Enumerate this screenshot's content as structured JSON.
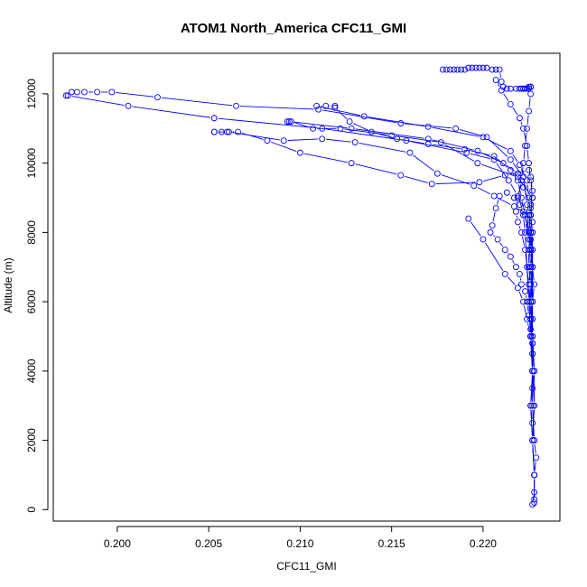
{
  "chart_data": {
    "type": "scatter",
    "title": "ATOM1 North_America CFC11_GMI",
    "xlabel": "CFC11_GMI",
    "ylabel": "Altitude (m)",
    "xlim": [
      0.1965,
      0.2242
    ],
    "ylim": [
      -330,
      13170
    ],
    "x_ticks": [
      "0.200",
      "0.205",
      "0.210",
      "0.215",
      "0.220"
    ],
    "y_ticks": [
      "0",
      "2000",
      "4000",
      "6000",
      "8000",
      "10000",
      "12000"
    ],
    "x_tick_values": [
      0.2,
      0.205,
      0.21,
      0.215,
      0.22
    ],
    "y_tick_values": [
      0,
      2000,
      4000,
      6000,
      8000,
      10000,
      12000
    ],
    "grid": false,
    "marker": "open-circle",
    "color": "#0000ff",
    "series": [
      {
        "x": [
          0.2227,
          0.2228,
          0.2228,
          0.2229,
          0.2228,
          0.2227,
          0.2226,
          0.2227,
          0.2228,
          0.2227,
          0.2226,
          0.2226,
          0.2227,
          0.2226,
          0.2225,
          0.2225,
          0.2226,
          0.2225,
          0.2226,
          0.2227,
          0.2226,
          0.2225,
          0.2212,
          0.2198,
          0.2172,
          0.2155,
          0.2128,
          0.21,
          0.2082,
          0.2066,
          0.206,
          0.2057,
          0.2053
        ],
        "y": [
          150,
          500,
          1000,
          1500,
          2000,
          2500,
          3000,
          3500,
          4000,
          4500,
          5000,
          5500,
          6000,
          6500,
          7000,
          7500,
          8000,
          8200,
          8700,
          9200,
          9600,
          9800,
          9650,
          9450,
          9400,
          9650,
          10000,
          10300,
          10650,
          10900,
          10900,
          10900,
          10900
        ]
      },
      {
        "x": [
          0.2053,
          0.2061,
          0.2091,
          0.2112,
          0.213,
          0.216,
          0.2175,
          0.2195,
          0.2206,
          0.2217,
          0.2225,
          0.2226,
          0.2227,
          0.2226,
          0.2225,
          0.2226,
          0.2227,
          0.2226
        ],
        "y": [
          10900,
          10900,
          10650,
          10700,
          10600,
          10300,
          9700,
          9350,
          9050,
          8750,
          8500,
          8000,
          7500,
          7000,
          6500,
          6000,
          5500,
          5000
        ]
      },
      {
        "x": [
          0.2226,
          0.2227,
          0.2227,
          0.2228,
          0.2227,
          0.2226,
          0.2227,
          0.2226,
          0.2227,
          0.2219,
          0.2197,
          0.2177,
          0.215,
          0.2122,
          0.2107,
          0.2095,
          0.2093
        ],
        "y": [
          5000,
          5500,
          6000,
          6500,
          7000,
          7500,
          8000,
          8500,
          9000,
          9600,
          10000,
          10600,
          10800,
          11000,
          11000,
          11200,
          11200
        ]
      },
      {
        "x": [
          0.2094,
          0.2128,
          0.217,
          0.2197,
          0.2211,
          0.2219,
          0.2222,
          0.2226,
          0.2227,
          0.2226,
          0.2227,
          0.2226,
          0.2227,
          0.2227,
          0.2228,
          0.2228,
          0.2227,
          0.2228,
          0.2228
        ],
        "y": [
          11200,
          11000,
          10700,
          10350,
          10000,
          9700,
          9300,
          8800,
          8300,
          7800,
          7000,
          6500,
          6000,
          5000,
          4000,
          3000,
          2000,
          1000,
          300
        ]
      },
      {
        "x": [
          0.2228,
          0.2228,
          0.2227,
          0.2228,
          0.2227,
          0.2226,
          0.2227,
          0.2226,
          0.2225,
          0.2224,
          0.2222,
          0.2215,
          0.2202,
          0.2185,
          0.2155,
          0.211,
          0.2065,
          0.2022,
          0.1997,
          0.1989,
          0.1982,
          0.1978,
          0.1975,
          0.1972
        ],
        "y": [
          200,
          1000,
          2000,
          3000,
          4000,
          5000,
          6000,
          7000,
          7800,
          8800,
          9600,
          10100,
          10750,
          11000,
          11150,
          11550,
          11650,
          11900,
          12050,
          12050,
          12050,
          12050,
          12050,
          11950
        ]
      },
      {
        "x": [
          0.1973,
          0.2006,
          0.2053,
          0.2112,
          0.2158,
          0.2191,
          0.2206,
          0.2214,
          0.2219,
          0.2222,
          0.2225,
          0.2227,
          0.2227,
          0.2226,
          0.2227,
          0.2227,
          0.2228
        ],
        "y": [
          11950,
          11650,
          11300,
          11000,
          10650,
          10300,
          10100,
          9500,
          9050,
          8600,
          8050,
          7500,
          6000,
          5000,
          4000,
          3000,
          2000
        ]
      },
      {
        "x": [
          0.2228,
          0.2227,
          0.2226,
          0.2227,
          0.2227,
          0.2226,
          0.2226,
          0.2227,
          0.2226,
          0.2225,
          0.2223,
          0.2221,
          0.2219,
          0.2215,
          0.2206,
          0.219,
          0.217,
          0.2153,
          0.2139,
          0.2127,
          0.2119
        ],
        "y": [
          1000,
          2000,
          3000,
          4000,
          5000,
          6000,
          6500,
          7000,
          7500,
          8000,
          8500,
          9000,
          9500,
          9800,
          10200,
          10400,
          10550,
          10700,
          10900,
          11200,
          11600
        ]
      },
      {
        "x": [
          0.2119,
          0.2114,
          0.2109,
          0.2135,
          0.217,
          0.22,
          0.2215,
          0.222,
          0.2224,
          0.2225,
          0.2226,
          0.2227,
          0.2227,
          0.2226,
          0.2227,
          0.2228
        ],
        "y": [
          11650,
          11650,
          11650,
          11350,
          11050,
          10750,
          10350,
          9950,
          9500,
          9000,
          8500,
          8000,
          7000,
          6000,
          5000,
          4000
        ]
      },
      {
        "x": [
          0.2227,
          0.2226,
          0.2225,
          0.2224,
          0.2223,
          0.2222,
          0.222,
          0.2217,
          0.2213,
          0.2209,
          0.2207,
          0.2205,
          0.2204,
          0.2208,
          0.2212,
          0.2215,
          0.2218,
          0.222,
          0.2221,
          0.2223,
          0.2224,
          0.2225,
          0.2226,
          0.2227
        ],
        "y": [
          4000,
          5000,
          6000,
          7000,
          8000,
          8500,
          8800,
          9000,
          9150,
          9050,
          8700,
          8200,
          8000,
          7800,
          7500,
          7300,
          7000,
          6800,
          6500,
          6300,
          6000,
          5600,
          5200,
          4800
        ]
      },
      {
        "x": [
          0.2227,
          0.2226,
          0.2225,
          0.2223,
          0.2221,
          0.2219,
          0.2218,
          0.2219,
          0.2221,
          0.2222,
          0.2223,
          0.2224,
          0.2225,
          0.2226,
          0.2225,
          0.2226,
          0.2226,
          0.2226,
          0.2226,
          0.2225,
          0.2224,
          0.2223,
          0.2222,
          0.2221,
          0.222,
          0.2218,
          0.2215,
          0.2213,
          0.2211,
          0.221,
          0.2209,
          0.2207,
          0.2205,
          0.2202,
          0.22,
          0.2198,
          0.2196,
          0.2194,
          0.2192,
          0.219,
          0.2188,
          0.2186,
          0.2184,
          0.2182,
          0.218,
          0.2178
        ],
        "y": [
          4800,
          5500,
          6500,
          7500,
          8000,
          8300,
          8600,
          9000,
          9500,
          10000,
          10500,
          11000,
          11500,
          12000,
          12200,
          12200,
          12200,
          12200,
          12200,
          12150,
          12150,
          12150,
          12150,
          12150,
          12150,
          12150,
          12150,
          12150,
          12200,
          12350,
          12700,
          12700,
          12700,
          12750,
          12750,
          12750,
          12750,
          12750,
          12750,
          12700,
          12700,
          12700,
          12700,
          12700,
          12700,
          12700
        ]
      },
      {
        "x": [
          0.2207,
          0.221,
          0.2215,
          0.222,
          0.2222,
          0.2224,
          0.2225,
          0.2226,
          0.2227,
          0.2226,
          0.2225,
          0.2226,
          0.2227
        ],
        "y": [
          12400,
          12100,
          11700,
          11300,
          11000,
          10500,
          10000,
          9500,
          9000,
          8500,
          8000,
          7500,
          7000
        ]
      },
      {
        "x": [
          0.2192,
          0.22,
          0.2212,
          0.2219,
          0.2222,
          0.2224,
          0.2226,
          0.2227,
          0.2227
        ],
        "y": [
          8400,
          7800,
          6800,
          6400,
          6000,
          5500,
          5000,
          4500,
          4000
        ]
      }
    ]
  }
}
